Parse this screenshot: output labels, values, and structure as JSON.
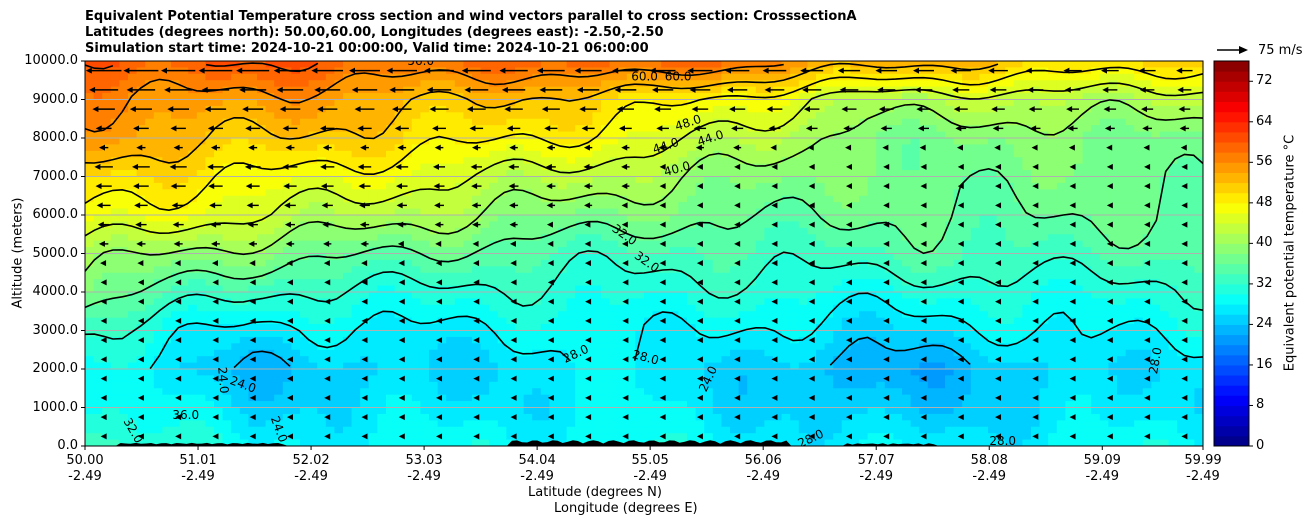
{
  "chart_data": {
    "type": "heatmap",
    "title_lines": [
      "Equivalent Potential Temperature cross section and wind vectors parallel to cross section: CrosssectionA",
      "Latitudes (degrees north): 50.00,60.00, Longitudes (degrees east): -2.50,-2.50",
      "Simulation start time: 2024-10-21 00:00:00, Valid time: 2024-10-21 06:00:00"
    ],
    "xlabel_lat": "Latitude (degrees N)",
    "xlabel_lon": "Longitude (degrees E)",
    "ylabel": "Altitude (meters)",
    "xlim": [
      50.0,
      59.99
    ],
    "ylim": [
      0,
      10000
    ],
    "x_ticks": [
      {
        "lat": "50.00",
        "lon": "-2.49",
        "value": 50.0
      },
      {
        "lat": "51.01",
        "lon": "-2.49",
        "value": 51.01
      },
      {
        "lat": "52.02",
        "lon": "-2.49",
        "value": 52.02
      },
      {
        "lat": "53.03",
        "lon": "-2.49",
        "value": 53.03
      },
      {
        "lat": "54.04",
        "lon": "-2.49",
        "value": 54.04
      },
      {
        "lat": "55.05",
        "lon": "-2.49",
        "value": 55.05
      },
      {
        "lat": "56.06",
        "lon": "-2.49",
        "value": 56.06
      },
      {
        "lat": "57.07",
        "lon": "-2.49",
        "value": 57.07
      },
      {
        "lat": "58.08",
        "lon": "-2.49",
        "value": 58.08
      },
      {
        "lat": "59.09",
        "lon": "-2.49",
        "value": 59.09
      },
      {
        "lat": "59.99",
        "lon": "-2.49",
        "value": 59.99
      }
    ],
    "y_ticks": [
      "0.0",
      "1000.0",
      "2000.0",
      "3000.0",
      "4000.0",
      "5000.0",
      "6000.0",
      "7000.0",
      "8000.0",
      "9000.0",
      "10000.0"
    ],
    "grid": "horizontal",
    "colorbar": {
      "label": "Equivalent potential temperature $^\\circ$C",
      "label_text": "Equivalent potential temperature °C",
      "range": [
        0,
        76
      ],
      "ticks": [
        0,
        8,
        16,
        24,
        32,
        40,
        48,
        56,
        64,
        72
      ],
      "colormap": "jet"
    },
    "reference_vector": "75 m/s",
    "contour_labels": [
      "60.0",
      "60.0",
      "56.0",
      "48.0",
      "44.0",
      "44.0",
      "40.0",
      "32.0",
      "32.0",
      "28.0",
      "28.0",
      "28.0",
      "28.0",
      "28.0",
      "24.0",
      "24.0",
      "24.0",
      "24.0",
      "32.0",
      "36.0"
    ],
    "wind_direction": "leftward (southward, toward 50N)",
    "terrain_color": "#000000",
    "field_samples_degC": {
      "altitudes_m": [
        0,
        1000,
        2000,
        3000,
        4000,
        5000,
        6000,
        7000,
        8000,
        9000,
        10000
      ],
      "at_lat_50.0": [
        34,
        30,
        29,
        32,
        38,
        42,
        48,
        50,
        54,
        56,
        60
      ],
      "at_lat_51.5": [
        28,
        26,
        24,
        27,
        32,
        38,
        44,
        48,
        52,
        55,
        60
      ],
      "at_lat_53.5": [
        29,
        27,
        26,
        28,
        31,
        35,
        40,
        44,
        49,
        52,
        58
      ],
      "at_lat_55.0": [
        29,
        28,
        28,
        29,
        31,
        33,
        37,
        41,
        46,
        50,
        60
      ],
      "at_lat_57.0": [
        27,
        24,
        22,
        26,
        30,
        34,
        36,
        37,
        38,
        42,
        54
      ],
      "at_lat_59.5": [
        29,
        27,
        27,
        29,
        31,
        34,
        36,
        37,
        38,
        42,
        50
      ]
    }
  }
}
